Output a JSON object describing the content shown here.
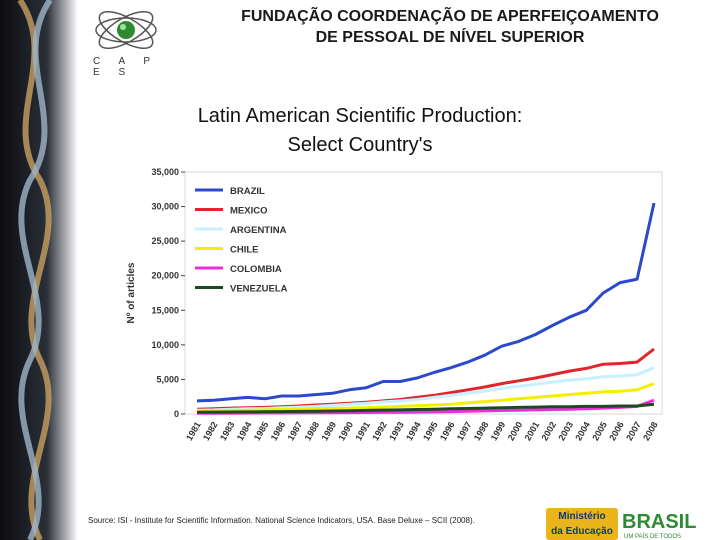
{
  "header": {
    "org_line1": "FUNDAÇÃO COORDENAÇÃO DE APERFEIÇOAMENTO",
    "org_line2": "DE PESSOAL DE NÍVEL SUPERIOR",
    "logo_text": "C A P E S"
  },
  "slide": {
    "title_line1": "Latin American Scientific Production:",
    "title_line2": "Select Country's"
  },
  "footer": {
    "source": "Source: ISI - Institute for Scientific Information. National Science Indicators, USA. Base Deluxe – SCII (2008).",
    "ministerio_line1": "Ministério",
    "ministerio_line2": "da Educação",
    "brasil_word": "BRASIL",
    "brasil_tagline": "UM PAÍS DE TODOS"
  },
  "colors": {
    "brazil": "#2b49c8",
    "mexico": "#e0262a",
    "argentina": "#c8f0ff",
    "chile": "#f2f000",
    "colombia": "#ee2fd8",
    "venezuela": "#1c4a22"
  },
  "chart_data": {
    "type": "line",
    "title": "",
    "xlabel": "",
    "ylabel": "Nº of articles",
    "ylim": [
      0,
      35000
    ],
    "yticks": [
      "0",
      "5,000",
      "10,000",
      "15,000",
      "20,000",
      "25,000",
      "30,000",
      "35,000"
    ],
    "x": [
      "1981",
      "1982",
      "1983",
      "1984",
      "1985",
      "1986",
      "1987",
      "1988",
      "1989",
      "1990",
      "1991",
      "1992",
      "1993",
      "1994",
      "1995",
      "1996",
      "1997",
      "1998",
      "1999",
      "2000",
      "2001",
      "2002",
      "2003",
      "2004",
      "2005",
      "2006",
      "2007",
      "2008"
    ],
    "legend_position": "top-left",
    "series": [
      {
        "name": "BRAZIL",
        "color_key": "brazil",
        "values": [
          1900,
          2000,
          2200,
          2400,
          2200,
          2600,
          2600,
          2800,
          3000,
          3500,
          3800,
          4700,
          4700,
          5200,
          6000,
          6700,
          7500,
          8500,
          9800,
          10500,
          11500,
          12800,
          14000,
          15000,
          17500,
          19000,
          19500,
          30500
        ]
      },
      {
        "name": "MEXICO",
        "color_key": "mexico",
        "values": [
          700,
          750,
          850,
          900,
          950,
          1050,
          1150,
          1300,
          1400,
          1550,
          1700,
          1900,
          2100,
          2400,
          2700,
          3100,
          3500,
          3900,
          4400,
          4800,
          5200,
          5700,
          6200,
          6600,
          7200,
          7300,
          7500,
          9400
        ]
      },
      {
        "name": "ARGENTINA",
        "color_key": "argentina",
        "values": [
          550,
          600,
          700,
          750,
          800,
          900,
          1000,
          1100,
          1250,
          1400,
          1550,
          1750,
          1900,
          2100,
          2400,
          2700,
          3000,
          3300,
          3700,
          4000,
          4300,
          4600,
          4900,
          5100,
          5400,
          5500,
          5700,
          6700
        ]
      },
      {
        "name": "CHILE",
        "color_key": "chile",
        "values": [
          400,
          450,
          500,
          550,
          600,
          650,
          700,
          750,
          800,
          850,
          900,
          1000,
          1100,
          1200,
          1300,
          1400,
          1600,
          1800,
          2000,
          2200,
          2400,
          2600,
          2800,
          3000,
          3200,
          3300,
          3500,
          4400
        ]
      },
      {
        "name": "COLOMBIA",
        "color_key": "colombia",
        "values": [
          100,
          110,
          120,
          130,
          140,
          150,
          160,
          170,
          180,
          200,
          220,
          240,
          260,
          280,
          300,
          350,
          400,
          450,
          500,
          550,
          600,
          650,
          700,
          750,
          850,
          950,
          1100,
          2000
        ]
      },
      {
        "name": "VENEZUELA",
        "color_key": "venezuela",
        "values": [
          250,
          270,
          290,
          310,
          330,
          350,
          380,
          410,
          440,
          480,
          520,
          560,
          600,
          650,
          700,
          750,
          800,
          850,
          900,
          950,
          1000,
          1050,
          1050,
          1100,
          1100,
          1150,
          1150,
          1400
        ]
      }
    ]
  }
}
